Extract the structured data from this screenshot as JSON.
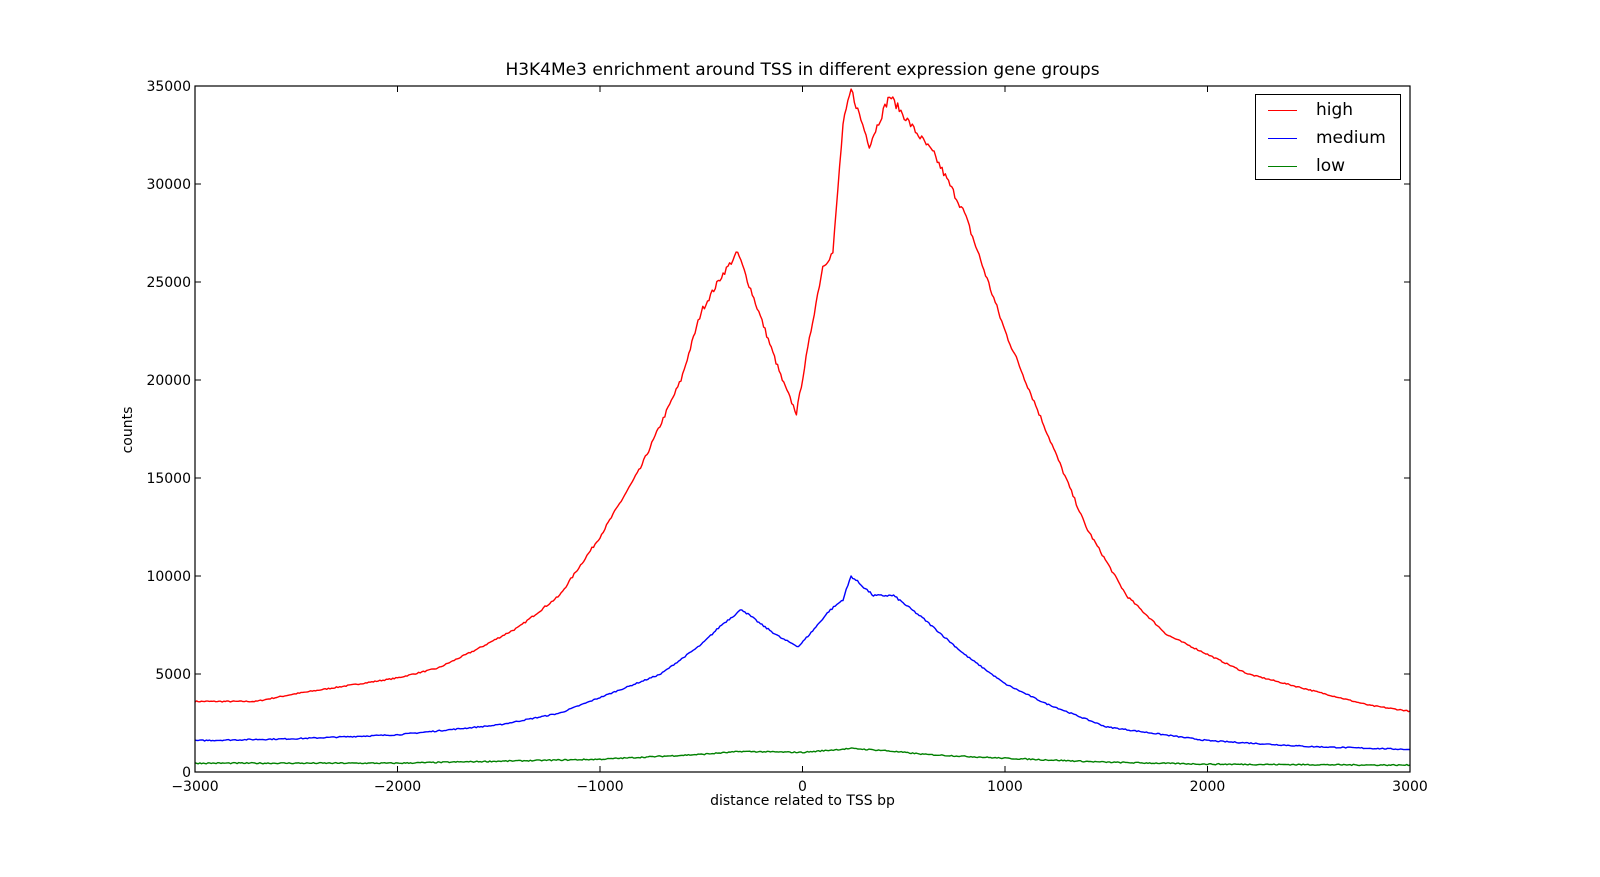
{
  "chart_data": {
    "type": "line",
    "title": "H3K4Me3 enrichment around TSS in different expression gene groups",
    "xlabel": "distance related to TSS bp",
    "ylabel": "counts",
    "xlim": [
      -3000,
      3000
    ],
    "ylim": [
      0,
      35000
    ],
    "xticks": [
      -3000,
      -2000,
      -1000,
      0,
      1000,
      2000,
      3000
    ],
    "xtick_labels": [
      "−3000",
      "−2000",
      "−1000",
      "0",
      "1000",
      "2000",
      "3000"
    ],
    "yticks": [
      0,
      5000,
      10000,
      15000,
      20000,
      25000,
      30000,
      35000
    ],
    "ytick_labels": [
      "0",
      "5000",
      "10000",
      "15000",
      "20000",
      "25000",
      "30000",
      "35000"
    ],
    "grid": false,
    "legend_position": "upper right",
    "series": [
      {
        "name": "high",
        "color": "#ff0000",
        "x": [
          -3000,
          -2700,
          -2500,
          -2000,
          -1800,
          -1600,
          -1400,
          -1200,
          -1000,
          -800,
          -600,
          -500,
          -400,
          -320,
          -200,
          -100,
          -30,
          50,
          100,
          150,
          200,
          240,
          330,
          430,
          550,
          650,
          800,
          1000,
          1200,
          1400,
          1600,
          1800,
          2000,
          2200,
          2500,
          2800,
          3000
        ],
        "values": [
          3600,
          3600,
          4000,
          4800,
          5300,
          6300,
          7400,
          9000,
          12000,
          15500,
          20000,
          23500,
          25300,
          26500,
          23000,
          20000,
          18300,
          23000,
          25800,
          26500,
          33000,
          34800,
          32000,
          34500,
          32800,
          31500,
          28500,
          22500,
          17500,
          12500,
          9000,
          7000,
          6000,
          5000,
          4200,
          3400,
          3100
        ]
      },
      {
        "name": "medium",
        "color": "#0000ff",
        "x": [
          -3000,
          -2500,
          -2000,
          -1500,
          -1200,
          -1000,
          -700,
          -500,
          -400,
          -300,
          -200,
          -100,
          -20,
          50,
          130,
          200,
          240,
          350,
          450,
          600,
          800,
          1000,
          1200,
          1500,
          2000,
          2500,
          3000
        ],
        "values": [
          1600,
          1700,
          1900,
          2400,
          3000,
          3800,
          5000,
          6500,
          7500,
          8300,
          7500,
          6800,
          6400,
          7200,
          8200,
          8800,
          10000,
          9000,
          9000,
          7800,
          6000,
          4500,
          3500,
          2300,
          1600,
          1300,
          1150
        ]
      },
      {
        "name": "low",
        "color": "#008000",
        "x": [
          -3000,
          -2000,
          -1000,
          -500,
          -300,
          0,
          240,
          400,
          600,
          1000,
          1500,
          2000,
          3000
        ],
        "values": [
          450,
          450,
          650,
          900,
          1050,
          1000,
          1200,
          1100,
          900,
          700,
          500,
          400,
          350
        ]
      }
    ]
  },
  "legend": {
    "items": [
      {
        "label": "high",
        "color": "#ff0000"
      },
      {
        "label": "medium",
        "color": "#0000ff"
      },
      {
        "label": "low",
        "color": "#008000"
      }
    ]
  }
}
